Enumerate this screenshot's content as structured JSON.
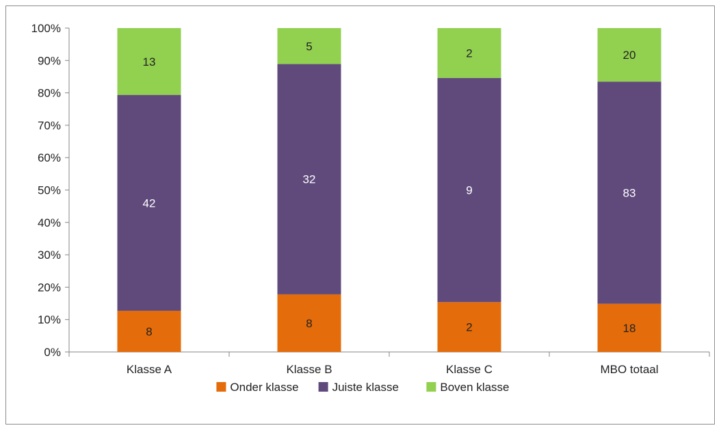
{
  "chart_data": {
    "type": "bar",
    "stacked": "percent",
    "categories": [
      "Klasse A",
      "Klasse B",
      "Klasse C",
      "MBO totaal"
    ],
    "series": [
      {
        "name": "Onder klasse",
        "color": "#E46C0A",
        "values": [
          8,
          8,
          2,
          18
        ],
        "label_color": "#222222"
      },
      {
        "name": "Juiste klasse",
        "color": "#604A7B",
        "values": [
          42,
          32,
          9,
          83
        ],
        "label_color": "#ffffff"
      },
      {
        "name": "Boven klasse",
        "color": "#92D050",
        "values": [
          13,
          5,
          2,
          20
        ],
        "label_color": "#222222"
      }
    ],
    "yticks": [
      "0%",
      "10%",
      "20%",
      "30%",
      "40%",
      "50%",
      "60%",
      "70%",
      "80%",
      "90%",
      "100%"
    ],
    "ylim": [
      0,
      100
    ],
    "grid": false,
    "legend_position": "bottom"
  }
}
